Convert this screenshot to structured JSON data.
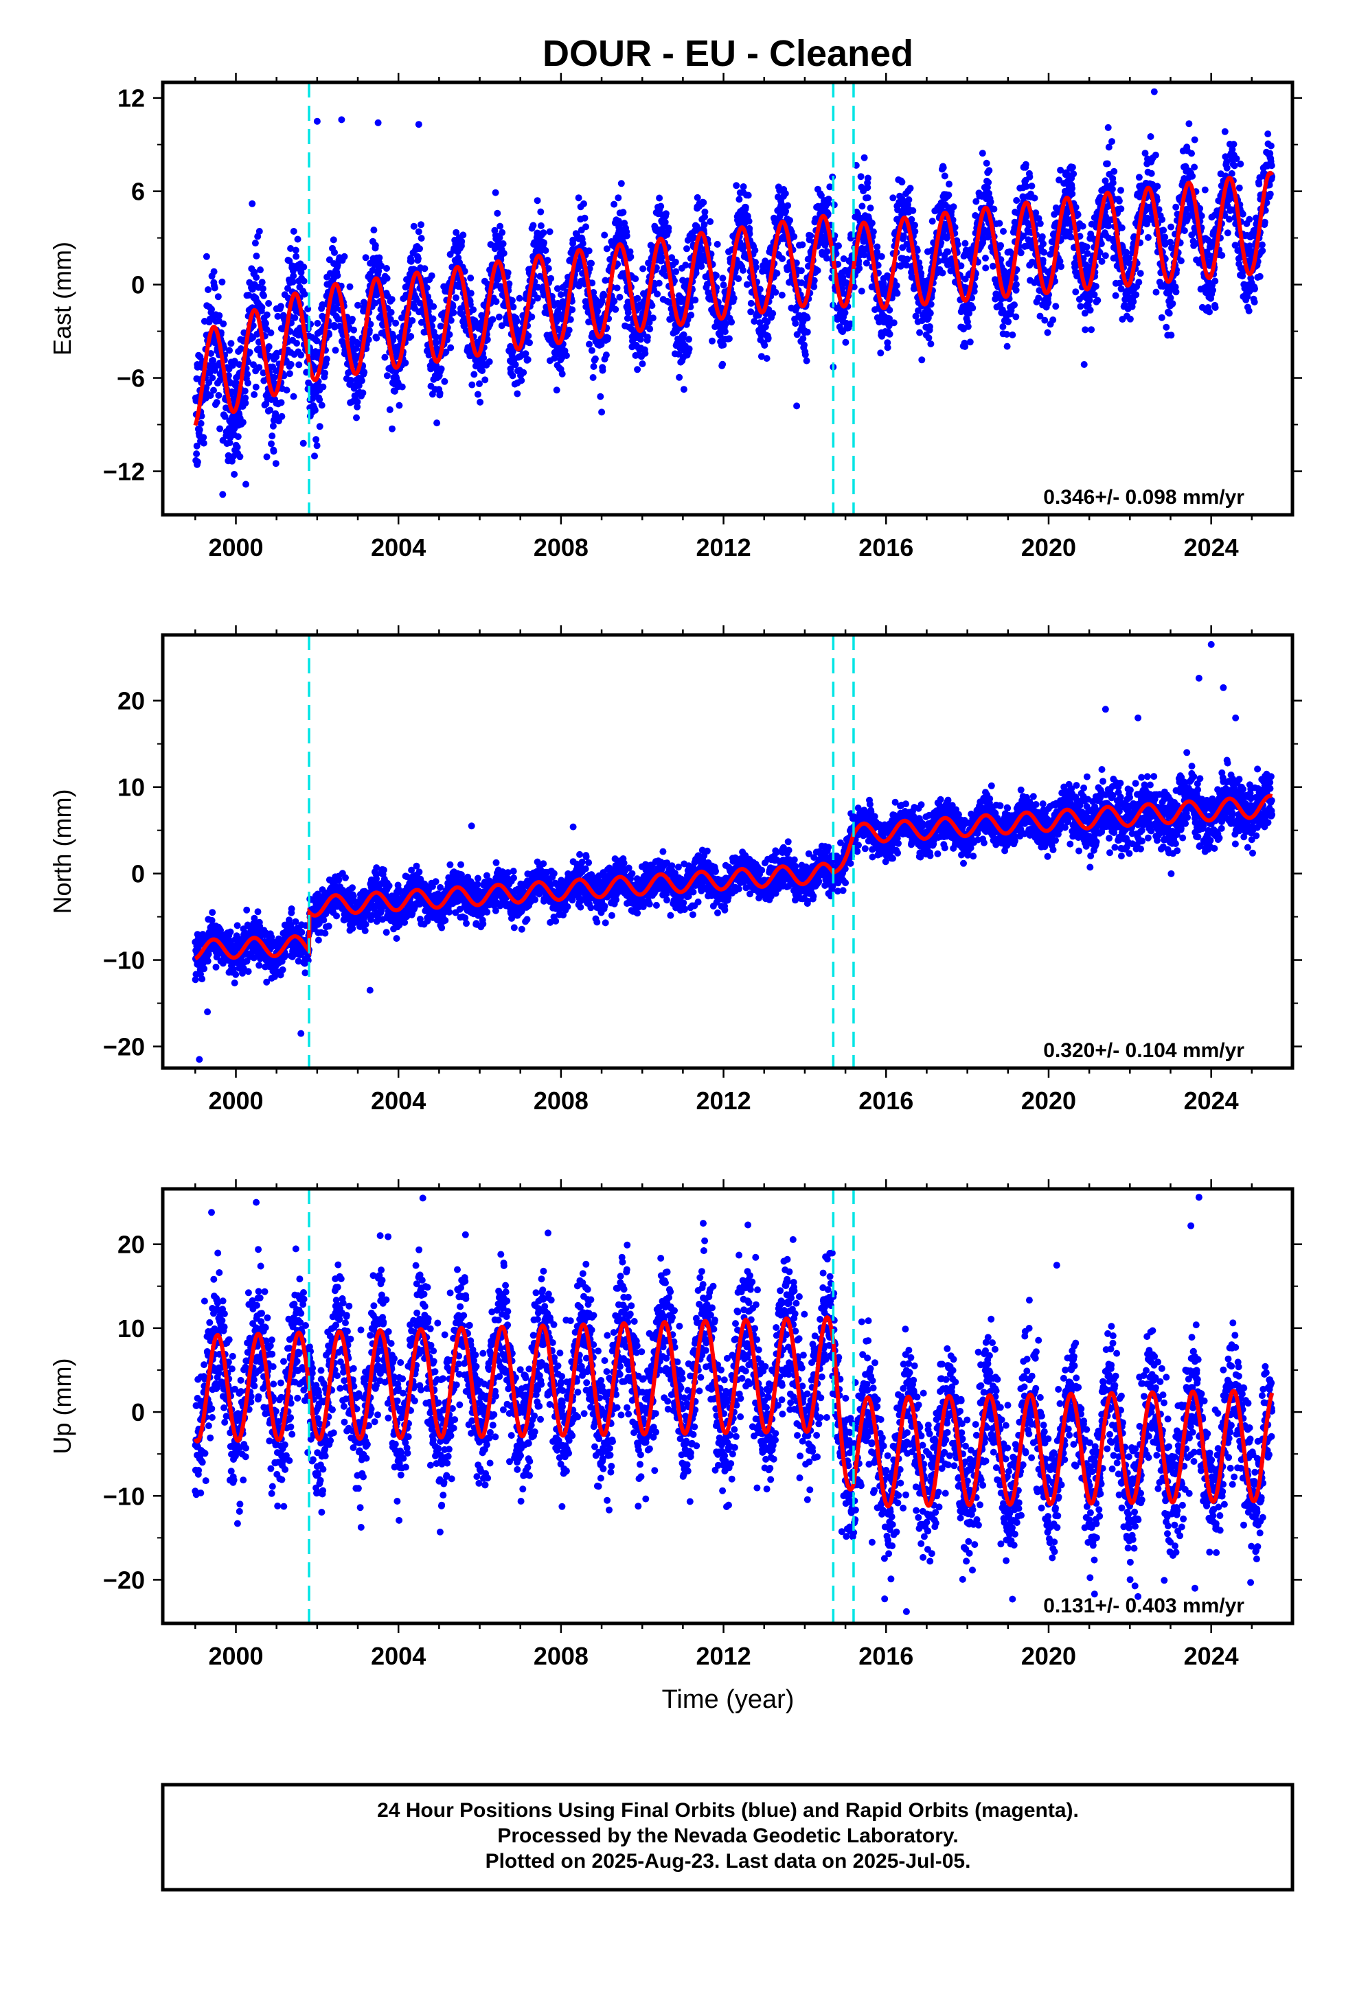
{
  "title": "DOUR  - EU - Cleaned",
  "colors": {
    "final_orbits": "#0000ff",
    "model": "#ff0000",
    "offsets": "#00e5e5",
    "frame": "#000000"
  },
  "xlabel": "Time (year)",
  "footer": [
    "24 Hour Positions Using Final Orbits (blue) and Rapid Orbits (magenta).",
    "Processed by the Nevada Geodetic Laboratory.",
    "Plotted on 2025-Aug-23. Last data on 2025-Jul-05."
  ],
  "chart_data": [
    {
      "type": "scatter",
      "component": "east",
      "ylabel": "East (mm)",
      "rate_text": "0.346+/- 0.098 mm/yr",
      "xlim": [
        1998.2,
        2026.0
      ],
      "ylim": [
        -14.8,
        13.0
      ],
      "xticks": [
        2000,
        2004,
        2008,
        2012,
        2016,
        2020,
        2024
      ],
      "xtick_labels": [
        "2000",
        "2004",
        "2008",
        "2012",
        "2016",
        "2020",
        "2024"
      ],
      "yticks": [
        -12,
        -6,
        0,
        6,
        12
      ],
      "ytick_labels": [
        "−12",
        "−6",
        "0",
        "6",
        "12"
      ],
      "offset_epochs": [
        2001.8,
        2014.7,
        2015.2
      ],
      "x_range": [
        1999.0,
        2025.5
      ],
      "model": {
        "knots": [
          1999.0,
          2001.8,
          2014.7,
          2015.2,
          2025.5
        ],
        "mean": [
          -6.2,
          -3.2,
          1.7,
          1.1,
          4.0
        ],
        "amplitude": [
          3.0,
          3.0,
          2.8,
          2.8,
          3.2
        ],
        "period_years": 1.0,
        "peak_phase": 0.45
      },
      "scatter_sigma": 1.5,
      "outliers": [
        [
          2000.4,
          5.2
        ],
        [
          2002.0,
          10.5
        ],
        [
          2002.6,
          10.6
        ],
        [
          2003.5,
          10.4
        ],
        [
          2004.5,
          10.3
        ],
        [
          2009.0,
          -8.2
        ],
        [
          2013.8,
          -7.8
        ],
        [
          2014.7,
          -5.3
        ],
        [
          2022.6,
          12.4
        ]
      ]
    },
    {
      "type": "scatter",
      "component": "north",
      "ylabel": "North (mm)",
      "rate_text": "0.320+/- 0.104 mm/yr",
      "xlim": [
        1998.2,
        2026.0
      ],
      "ylim": [
        -22.5,
        27.6
      ],
      "xticks": [
        2000,
        2004,
        2008,
        2012,
        2016,
        2020,
        2024
      ],
      "xtick_labels": [
        "2000",
        "2004",
        "2008",
        "2012",
        "2016",
        "2020",
        "2024"
      ],
      "yticks": [
        -20,
        -10,
        0,
        10,
        20
      ],
      "ytick_labels": [
        "−20",
        "−10",
        "0",
        "10",
        "20"
      ],
      "offset_epochs": [
        2001.8,
        2014.7,
        2015.2
      ],
      "x_range": [
        1999.0,
        2025.5
      ],
      "model": {
        "knots": [
          1999.0,
          2001.8,
          2001.81,
          2014.7,
          2015.2,
          2025.5
        ],
        "mean": [
          -8.8,
          -8.3,
          -3.8,
          0.1,
          4.6,
          7.8
        ],
        "amplitude": [
          1.1,
          1.1,
          1.1,
          1.1,
          1.1,
          1.2
        ],
        "period_years": 1.0,
        "peak_phase": 0.45
      },
      "scatter_sigma": 1.2,
      "outliers": [
        [
          1999.1,
          -21.5
        ],
        [
          1999.3,
          -16.0
        ],
        [
          2001.6,
          -18.5
        ],
        [
          2003.3,
          -13.5
        ],
        [
          2005.8,
          5.5
        ],
        [
          2008.3,
          5.4
        ],
        [
          2021.4,
          19.0
        ],
        [
          2022.2,
          18.0
        ],
        [
          2023.4,
          14.0
        ],
        [
          2023.7,
          22.6
        ],
        [
          2024.0,
          26.5
        ],
        [
          2024.3,
          21.5
        ],
        [
          2024.6,
          18.0
        ]
      ]
    },
    {
      "type": "scatter",
      "component": "up",
      "ylabel": "Up (mm)",
      "rate_text": "0.131+/- 0.403 mm/yr",
      "xlim": [
        1998.2,
        2026.0
      ],
      "ylim": [
        -25.2,
        26.6
      ],
      "xticks": [
        2000,
        2004,
        2008,
        2012,
        2016,
        2020,
        2024
      ],
      "xtick_labels": [
        "2000",
        "2004",
        "2008",
        "2012",
        "2016",
        "2020",
        "2024"
      ],
      "yticks": [
        -20,
        -10,
        0,
        10,
        20
      ],
      "ytick_labels": [
        "−20",
        "−10",
        "0",
        "10",
        "20"
      ],
      "offset_epochs": [
        2001.8,
        2014.7,
        2015.2
      ],
      "x_range": [
        1999.0,
        2025.5
      ],
      "model": {
        "knots": [
          1999.0,
          2014.7,
          2015.2,
          2025.5
        ],
        "mean": [
          2.8,
          4.5,
          -4.8,
          -4.0
        ],
        "amplitude": [
          6.3,
          6.8,
          6.5,
          6.6
        ],
        "period_years": 1.0,
        "peak_phase": 0.55
      },
      "scatter_sigma": 4.0,
      "outliers": [
        [
          1999.4,
          23.8
        ],
        [
          2000.5,
          25.0
        ],
        [
          2004.6,
          25.5
        ],
        [
          2011.5,
          22.5
        ],
        [
          2012.6,
          22.3
        ],
        [
          2016.5,
          -23.8
        ],
        [
          2020.2,
          17.5
        ],
        [
          2023.5,
          22.2
        ],
        [
          2023.7,
          25.6
        ],
        [
          2023.6,
          -21.0
        ],
        [
          2022.2,
          -22.0
        ]
      ]
    }
  ]
}
